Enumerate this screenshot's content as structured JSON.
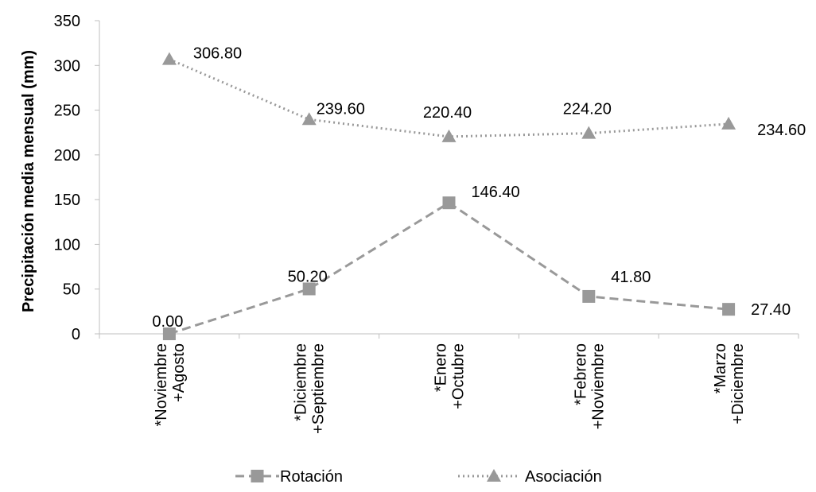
{
  "chart_data": {
    "type": "line",
    "ylabel": "Precipitación media mensual (mm)",
    "xlabel": "",
    "ylim": [
      0,
      350
    ],
    "yticks": [
      "0",
      "50",
      "100",
      "150",
      "200",
      "250",
      "300",
      "350"
    ],
    "categories": [
      [
        "*Noviembre",
        "+Agosto"
      ],
      [
        "*Diciembre",
        "+Septiembre"
      ],
      [
        "*Enero",
        "+Octubre"
      ],
      [
        "*Febrero",
        "+Noviembre"
      ],
      [
        "*Marzo",
        "+Diciembre"
      ]
    ],
    "series": [
      {
        "name": "Rotación",
        "values": [
          0.0,
          50.2,
          146.4,
          41.8,
          27.4
        ],
        "labels": [
          "0.00",
          "50.20",
          "146.40",
          "41.80",
          "27.40"
        ],
        "marker": "square",
        "line_style": "dashed",
        "color": "#999999"
      },
      {
        "name": "Asociación",
        "values": [
          306.8,
          239.6,
          220.4,
          224.2,
          234.6
        ],
        "labels": [
          "306.80",
          "239.60",
          "220.40",
          "224.20",
          "234.60"
        ],
        "marker": "triangle",
        "line_style": "dotted",
        "color": "#999999"
      }
    ],
    "grid": false,
    "legend_position": "bottom"
  }
}
